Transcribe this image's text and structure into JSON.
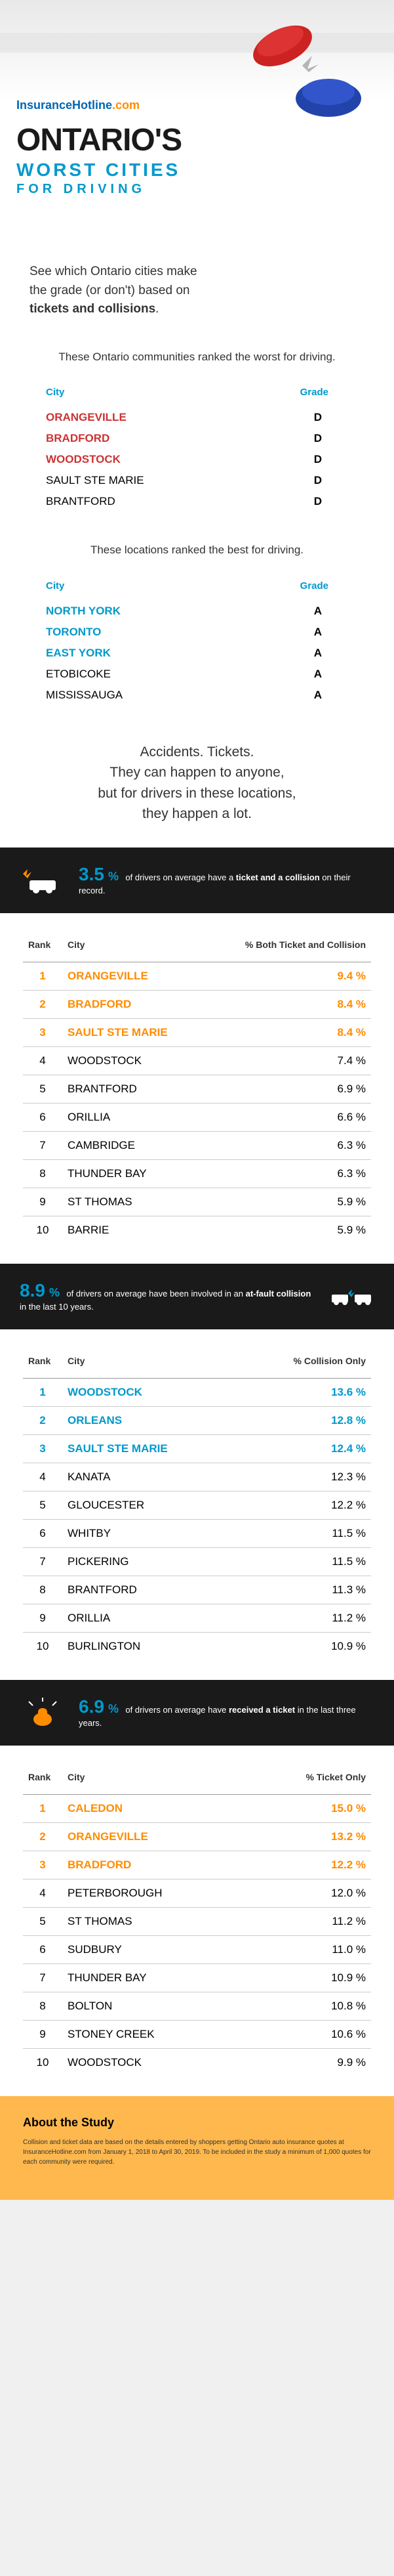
{
  "brand": {
    "part1": "InsuranceHotline",
    "part2": ".com"
  },
  "hero": {
    "title": "ONTARIO'S",
    "sub1": "WORST CITIES",
    "sub2": "FOR DRIVING"
  },
  "lead": {
    "l1": "See which Ontario cities make",
    "l2": "the grade (or don't) based on",
    "l3": "tickets and collisions"
  },
  "worst": {
    "intro": "These Ontario communities ranked the worst for driving.",
    "col1": "City",
    "col2": "Grade",
    "rows": [
      {
        "city": "ORANGEVILLE",
        "grade": "D",
        "hl": true
      },
      {
        "city": "BRADFORD",
        "grade": "D",
        "hl": true
      },
      {
        "city": "WOODSTOCK",
        "grade": "D",
        "hl": true
      },
      {
        "city": "SAULT STE MARIE",
        "grade": "D",
        "hl": false
      },
      {
        "city": "BRANTFORD",
        "grade": "D",
        "hl": false
      }
    ]
  },
  "best": {
    "intro": "These locations ranked the best for driving.",
    "col1": "City",
    "col2": "Grade",
    "rows": [
      {
        "city": "NORTH YORK",
        "grade": "A",
        "hl": true
      },
      {
        "city": "TORONTO",
        "grade": "A",
        "hl": true
      },
      {
        "city": "EAST YORK",
        "grade": "A",
        "hl": true
      },
      {
        "city": "ETOBICOKE",
        "grade": "A",
        "hl": false
      },
      {
        "city": "MISSISSAUGA",
        "grade": "A",
        "hl": false
      }
    ]
  },
  "quote": {
    "l1": "Accidents. Tickets.",
    "l2": "They can happen to anyone,",
    "l3": "but for drivers in these locations,",
    "l4": "they happen a lot."
  },
  "stat1": {
    "pct": "3.5",
    "unit": "%",
    "t1": "of drivers on average have a ",
    "b1": "ticket",
    "t2": " ",
    "b2": "and a collision",
    "t3": " on their record."
  },
  "table1": {
    "h1": "Rank",
    "h2": "City",
    "h3": "% Both Ticket and Collision",
    "rows": [
      {
        "r": "1",
        "c": "ORANGEVILLE",
        "p": "9.4 %",
        "top": true,
        "color": "orange"
      },
      {
        "r": "2",
        "c": "BRADFORD",
        "p": "8.4 %",
        "top": true,
        "color": "orange"
      },
      {
        "r": "3",
        "c": "SAULT STE MARIE",
        "p": "8.4 %",
        "top": true,
        "color": "orange"
      },
      {
        "r": "4",
        "c": "WOODSTOCK",
        "p": "7.4 %",
        "top": false
      },
      {
        "r": "5",
        "c": "BRANTFORD",
        "p": "6.9 %",
        "top": false
      },
      {
        "r": "6",
        "c": "ORILLIA",
        "p": "6.6 %",
        "top": false
      },
      {
        "r": "7",
        "c": "CAMBRIDGE",
        "p": "6.3 %",
        "top": false
      },
      {
        "r": "8",
        "c": "THUNDER BAY",
        "p": "6.3 %",
        "top": false
      },
      {
        "r": "9",
        "c": "ST THOMAS",
        "p": "5.9 %",
        "top": false
      },
      {
        "r": "10",
        "c": "BARRIE",
        "p": "5.9 %",
        "top": false
      }
    ]
  },
  "stat2": {
    "pct": "8.9",
    "unit": "%",
    "t1": "of drivers on average have been involved in an ",
    "b1": "at-fault collision",
    "t2": " in the last 10 years."
  },
  "table2": {
    "h1": "Rank",
    "h2": "City",
    "h3": "% Collision Only",
    "rows": [
      {
        "r": "1",
        "c": "WOODSTOCK",
        "p": "13.6 %",
        "top": true,
        "color": "blue"
      },
      {
        "r": "2",
        "c": "ORLEANS",
        "p": "12.8 %",
        "top": true,
        "color": "blue"
      },
      {
        "r": "3",
        "c": "SAULT STE MARIE",
        "p": "12.4 %",
        "top": true,
        "color": "blue"
      },
      {
        "r": "4",
        "c": "KANATA",
        "p": "12.3 %",
        "top": false
      },
      {
        "r": "5",
        "c": "GLOUCESTER",
        "p": "12.2 %",
        "top": false
      },
      {
        "r": "6",
        "c": "WHITBY",
        "p": "11.5 %",
        "top": false
      },
      {
        "r": "7",
        "c": "PICKERING",
        "p": "11.5 %",
        "top": false
      },
      {
        "r": "8",
        "c": "BRANTFORD",
        "p": "11.3 %",
        "top": false
      },
      {
        "r": "9",
        "c": "ORILLIA",
        "p": "11.2 %",
        "top": false
      },
      {
        "r": "10",
        "c": "BURLINGTON",
        "p": "10.9 %",
        "top": false
      }
    ]
  },
  "stat3": {
    "pct": "6.9",
    "unit": "%",
    "t1": "of drivers on average have ",
    "b1": "received a ticket",
    "t2": " in the last three years."
  },
  "table3": {
    "h1": "Rank",
    "h2": "City",
    "h3": "% Ticket Only",
    "rows": [
      {
        "r": "1",
        "c": "CALEDON",
        "p": "15.0 %",
        "top": true,
        "color": "orange"
      },
      {
        "r": "2",
        "c": "ORANGEVILLE",
        "p": "13.2 %",
        "top": true,
        "color": "orange"
      },
      {
        "r": "3",
        "c": "BRADFORD",
        "p": "12.2 %",
        "top": true,
        "color": "orange"
      },
      {
        "r": "4",
        "c": "PETERBOROUGH",
        "p": "12.0 %",
        "top": false
      },
      {
        "r": "5",
        "c": "ST THOMAS",
        "p": "11.2 %",
        "top": false
      },
      {
        "r": "6",
        "c": "SUDBURY",
        "p": "11.0 %",
        "top": false
      },
      {
        "r": "7",
        "c": "THUNDER BAY",
        "p": "10.9 %",
        "top": false
      },
      {
        "r": "8",
        "c": "BOLTON",
        "p": "10.8 %",
        "top": false
      },
      {
        "r": "9",
        "c": "STONEY CREEK",
        "p": "10.6 %",
        "top": false
      },
      {
        "r": "10",
        "c": "WOODSTOCK",
        "p": "9.9 %",
        "top": false
      }
    ]
  },
  "about": {
    "title": "About the Study",
    "body": "Collision and ticket data are based on the details entered by shoppers getting Ontario auto insurance quotes at InsuranceHotline.com from January 1, 2018 to April 30, 2019. To be included in the study a minimum of 1,000 quotes for each community were required."
  }
}
